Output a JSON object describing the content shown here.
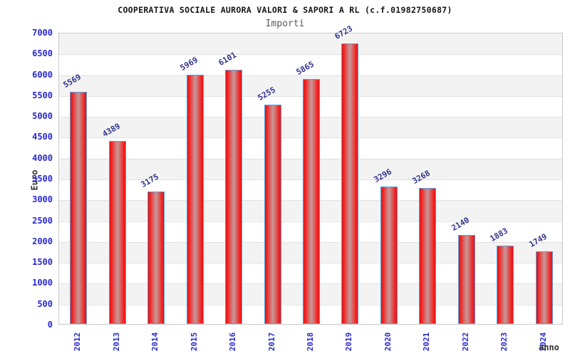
{
  "title": "COOPERATIVA SOCIALE AURORA VALORI & SAPORI A RL (c.f.01982750687)",
  "subtitle": "Importi",
  "chart_data": {
    "type": "bar",
    "title": "COOPERATIVA SOCIALE AURORA VALORI & SAPORI A RL (c.f.01982750687)",
    "subtitle": "Importi",
    "categories": [
      "2012",
      "2013",
      "2014",
      "2015",
      "2016",
      "2017",
      "2018",
      "2019",
      "2020",
      "2021",
      "2022",
      "2023",
      "2024"
    ],
    "values": [
      5569,
      4389,
      3175,
      5969,
      6101,
      5255,
      5865,
      6723,
      3296,
      3268,
      2140,
      1883,
      1749
    ],
    "xlabel": "anno",
    "ylabel": "Euro",
    "ylim": [
      0,
      7000
    ],
    "ytick_step": 500,
    "grid": "horizontal-bands",
    "legend": "none",
    "colors": {
      "bar_edge_red": "#e81111",
      "bar_center": "#c99090",
      "bar_border": "#55a0de",
      "tick_label": "#2828cf",
      "value_label": "#34348e",
      "band_gray": "#f3f3f3",
      "title_text": "#161616",
      "subtitle_text": "#5a5a5a",
      "axis_title_text": "#333333"
    }
  }
}
